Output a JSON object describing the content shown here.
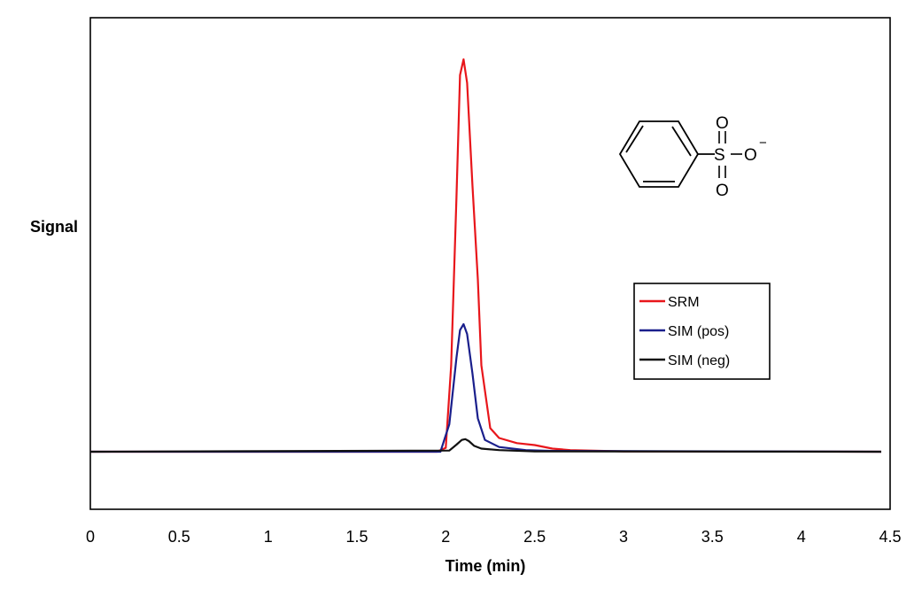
{
  "chart_data": {
    "type": "line",
    "title": "",
    "xlabel": "Time (min)",
    "ylabel": "Signal",
    "xlim": [
      0,
      4.5
    ],
    "xticks": [
      0,
      0.5,
      1,
      1.5,
      2,
      2.5,
      3,
      3.5,
      4,
      4.5
    ],
    "xtick_labels": [
      "0",
      "0.5",
      "1",
      "1.5",
      "2",
      "2.5",
      "3",
      "3.5",
      "4",
      "4.5"
    ],
    "ylim": [
      -0.15,
      1.05
    ],
    "grid": false,
    "legend_position": "right",
    "series": [
      {
        "name": "SRM",
        "color": "#e8161b",
        "x": [
          0,
          1.95,
          2.0,
          2.03,
          2.06,
          2.08,
          2.1,
          2.12,
          2.15,
          2.18,
          2.2,
          2.25,
          2.3,
          2.4,
          2.5,
          2.6,
          2.7,
          3.0,
          4.45
        ],
        "y": [
          0,
          0,
          0.01,
          0.22,
          0.65,
          0.96,
          1.0,
          0.94,
          0.68,
          0.44,
          0.22,
          0.06,
          0.035,
          0.022,
          0.017,
          0.008,
          0.004,
          0.001,
          0
        ]
      },
      {
        "name": "SIM (pos)",
        "color": "#1a1f8c",
        "x": [
          0,
          1.97,
          2.02,
          2.06,
          2.08,
          2.1,
          2.12,
          2.15,
          2.18,
          2.22,
          2.3,
          2.45,
          2.6,
          4.45
        ],
        "y": [
          0,
          0,
          0.07,
          0.24,
          0.31,
          0.325,
          0.3,
          0.2,
          0.085,
          0.03,
          0.012,
          0.004,
          0.002,
          0
        ]
      },
      {
        "name": "SIM (neg)",
        "color": "#111111",
        "x": [
          0,
          2.02,
          2.06,
          2.09,
          2.11,
          2.13,
          2.16,
          2.2,
          2.3,
          2.5,
          4.45
        ],
        "y": [
          0,
          0.003,
          0.018,
          0.03,
          0.032,
          0.027,
          0.015,
          0.008,
          0.004,
          0.001,
          0
        ]
      }
    ]
  },
  "molecule": {
    "atoms": {
      "sulfur": "S",
      "oxygen_top": "O",
      "oxygen_bottom": "O",
      "oxygen_right": "O",
      "charge": "−"
    }
  }
}
